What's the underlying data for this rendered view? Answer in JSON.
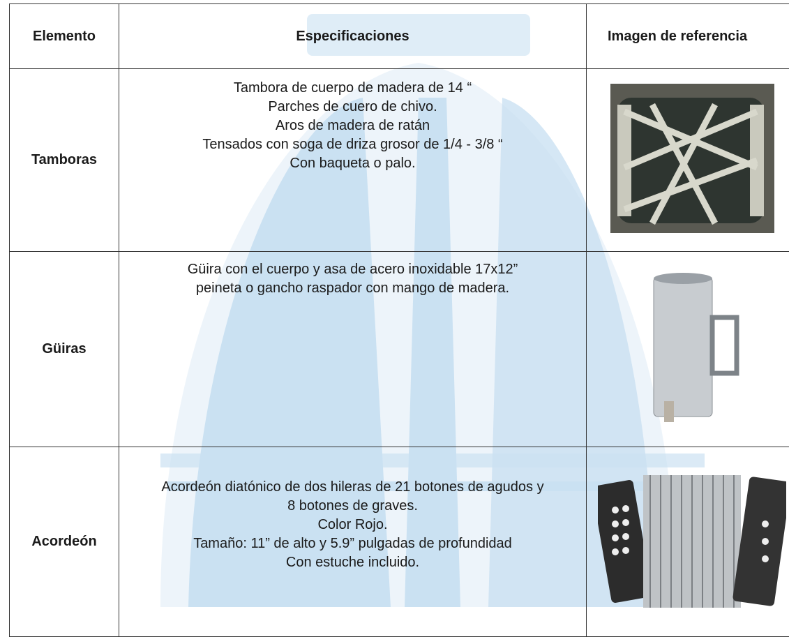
{
  "table": {
    "header": [
      "Elemento",
      "Especificaciones",
      "Imagen de referencia"
    ],
    "rows": [
      {
        "element": "Tamboras",
        "specs": [
          "Tambora de cuerpo de madera de 14 “",
          "Parches de cuero de chivo.",
          "Aros de madera de ratán",
          "Tensados con soga de driza grosor de 1/4 - 3/8 “",
          "Con baqueta o palo."
        ]
      },
      {
        "element": "Güiras",
        "specs": [
          "Güira con el cuerpo y asa de acero inoxidable 17x12”",
          "peineta o gancho raspador con mango de madera."
        ]
      },
      {
        "element": "Acordeón",
        "specs": [
          "Acordeón diatónico de dos hileras de 21 botones de agudos y",
          "8 botones de graves.",
          "Color Rojo.",
          "Tamaño: 11” de alto y 5.9” pulgadas de profundidad",
          "Con estuche incluido."
        ]
      }
    ]
  }
}
